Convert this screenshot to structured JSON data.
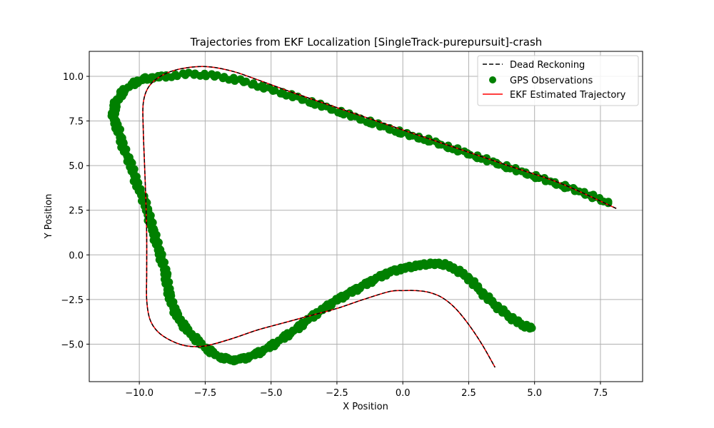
{
  "chart_data": {
    "type": "line",
    "title": "Trajectories from EKF Localization [SingleTrack-purepursuit]-crash",
    "xlabel": "X Position",
    "ylabel": "Y Position",
    "xlim": [
      -11.9,
      9.1
    ],
    "ylim": [
      -7.1,
      11.4
    ],
    "xticks": [
      -10.0,
      -7.5,
      -5.0,
      -2.5,
      0.0,
      2.5,
      5.0,
      7.5
    ],
    "xtick_labels": [
      "−10.0",
      "−7.5",
      "−5.0",
      "−2.5",
      "0.0",
      "2.5",
      "5.0",
      "7.5"
    ],
    "yticks": [
      -5.0,
      -2.5,
      0.0,
      2.5,
      5.0,
      7.5,
      10.0
    ],
    "ytick_labels": [
      "−5.0",
      "−2.5",
      "0.0",
      "2.5",
      "5.0",
      "7.5",
      "10.0"
    ],
    "grid": true,
    "legend_position": "top-right",
    "series": [
      {
        "name": "Dead Reckoning",
        "kind": "line",
        "style": "dashed",
        "color": "#000000",
        "points": [
          [
            8.1,
            2.6
          ],
          [
            6.0,
            4.0
          ],
          [
            4.0,
            5.0
          ],
          [
            2.0,
            6.0
          ],
          [
            0.0,
            7.0
          ],
          [
            -2.0,
            8.0
          ],
          [
            -4.0,
            9.0
          ],
          [
            -5.5,
            9.8
          ],
          [
            -6.5,
            10.3
          ],
          [
            -7.5,
            10.55
          ],
          [
            -8.5,
            10.4
          ],
          [
            -9.2,
            10.0
          ],
          [
            -9.65,
            9.4
          ],
          [
            -9.85,
            8.5
          ],
          [
            -9.85,
            7.0
          ],
          [
            -9.8,
            5.0
          ],
          [
            -9.75,
            3.0
          ],
          [
            -9.72,
            1.0
          ],
          [
            -9.72,
            -1.0
          ],
          [
            -9.72,
            -2.5
          ],
          [
            -9.6,
            -3.6
          ],
          [
            -9.3,
            -4.3
          ],
          [
            -8.8,
            -4.8
          ],
          [
            -8.2,
            -5.1
          ],
          [
            -7.5,
            -5.1
          ],
          [
            -6.5,
            -4.7
          ],
          [
            -5.5,
            -4.2
          ],
          [
            -4.5,
            -3.8
          ],
          [
            -3.5,
            -3.4
          ],
          [
            -2.5,
            -3.0
          ],
          [
            -1.5,
            -2.5
          ],
          [
            -0.5,
            -2.05
          ],
          [
            0.0,
            -2.0
          ],
          [
            0.5,
            -2.0
          ],
          [
            1.0,
            -2.1
          ],
          [
            1.5,
            -2.4
          ],
          [
            2.0,
            -3.0
          ],
          [
            2.5,
            -3.9
          ],
          [
            3.0,
            -5.0
          ],
          [
            3.5,
            -6.3
          ]
        ]
      },
      {
        "name": "GPS Observations",
        "kind": "scatter",
        "color": "#008000",
        "points": [
          [
            7.8,
            2.9
          ],
          [
            7.0,
            3.4
          ],
          [
            6.0,
            3.9
          ],
          [
            5.0,
            4.4
          ],
          [
            4.0,
            4.9
          ],
          [
            3.0,
            5.4
          ],
          [
            2.0,
            5.9
          ],
          [
            1.0,
            6.4
          ],
          [
            0.0,
            6.8
          ],
          [
            -1.0,
            7.3
          ],
          [
            -2.0,
            7.8
          ],
          [
            -3.0,
            8.3
          ],
          [
            -4.0,
            8.8
          ],
          [
            -5.0,
            9.25
          ],
          [
            -6.0,
            9.7
          ],
          [
            -7.0,
            10.0
          ],
          [
            -8.0,
            10.15
          ],
          [
            -9.0,
            10.0
          ],
          [
            -9.7,
            9.9
          ],
          [
            -10.1,
            9.7
          ],
          [
            -10.6,
            9.2
          ],
          [
            -10.9,
            8.5
          ],
          [
            -11.0,
            7.8
          ],
          [
            -10.8,
            7.0
          ],
          [
            -10.6,
            6.0
          ],
          [
            -10.3,
            5.0
          ],
          [
            -10.1,
            4.0
          ],
          [
            -9.8,
            3.0
          ],
          [
            -9.6,
            2.0
          ],
          [
            -9.4,
            1.0
          ],
          [
            -9.2,
            0.0
          ],
          [
            -9.0,
            -1.0
          ],
          [
            -8.9,
            -2.0
          ],
          [
            -8.7,
            -3.0
          ],
          [
            -8.4,
            -3.8
          ],
          [
            -8.0,
            -4.5
          ],
          [
            -7.5,
            -5.2
          ],
          [
            -7.0,
            -5.7
          ],
          [
            -6.5,
            -5.9
          ],
          [
            -6.0,
            -5.8
          ],
          [
            -5.5,
            -5.5
          ],
          [
            -5.0,
            -5.1
          ],
          [
            -4.5,
            -4.6
          ],
          [
            -4.0,
            -4.1
          ],
          [
            -3.5,
            -3.5
          ],
          [
            -3.0,
            -3.0
          ],
          [
            -2.5,
            -2.5
          ],
          [
            -2.0,
            -2.1
          ],
          [
            -1.5,
            -1.7
          ],
          [
            -1.0,
            -1.3
          ],
          [
            -0.5,
            -0.95
          ],
          [
            0.0,
            -0.75
          ],
          [
            0.5,
            -0.6
          ],
          [
            1.0,
            -0.5
          ],
          [
            1.5,
            -0.5
          ],
          [
            2.0,
            -0.8
          ],
          [
            2.5,
            -1.3
          ],
          [
            3.0,
            -2.1
          ],
          [
            3.5,
            -2.8
          ],
          [
            4.0,
            -3.4
          ],
          [
            4.5,
            -3.9
          ],
          [
            4.9,
            -4.1
          ]
        ]
      },
      {
        "name": "EKF Estimated Trajectory",
        "kind": "line",
        "style": "solid",
        "color": "#ff0000",
        "points": [
          [
            8.1,
            2.6
          ],
          [
            6.0,
            4.0
          ],
          [
            4.0,
            5.0
          ],
          [
            2.0,
            6.0
          ],
          [
            0.0,
            7.0
          ],
          [
            -2.0,
            8.0
          ],
          [
            -4.0,
            9.0
          ],
          [
            -5.5,
            9.8
          ],
          [
            -6.5,
            10.3
          ],
          [
            -7.5,
            10.55
          ],
          [
            -8.5,
            10.4
          ],
          [
            -9.2,
            10.0
          ],
          [
            -9.65,
            9.4
          ],
          [
            -9.85,
            8.5
          ],
          [
            -9.85,
            7.0
          ],
          [
            -9.8,
            5.0
          ],
          [
            -9.75,
            3.0
          ],
          [
            -9.72,
            1.0
          ],
          [
            -9.72,
            -1.0
          ],
          [
            -9.72,
            -2.5
          ],
          [
            -9.6,
            -3.6
          ],
          [
            -9.3,
            -4.3
          ],
          [
            -8.8,
            -4.8
          ],
          [
            -8.2,
            -5.1
          ],
          [
            -7.5,
            -5.1
          ],
          [
            -6.5,
            -4.7
          ],
          [
            -5.5,
            -4.2
          ],
          [
            -4.5,
            -3.8
          ],
          [
            -3.5,
            -3.4
          ],
          [
            -2.5,
            -3.0
          ],
          [
            -1.5,
            -2.5
          ],
          [
            -0.5,
            -2.05
          ],
          [
            0.0,
            -2.0
          ],
          [
            0.5,
            -2.0
          ],
          [
            1.0,
            -2.1
          ],
          [
            1.5,
            -2.4
          ],
          [
            2.0,
            -3.0
          ],
          [
            2.5,
            -3.9
          ],
          [
            3.0,
            -5.0
          ],
          [
            3.5,
            -6.3
          ]
        ]
      }
    ]
  }
}
